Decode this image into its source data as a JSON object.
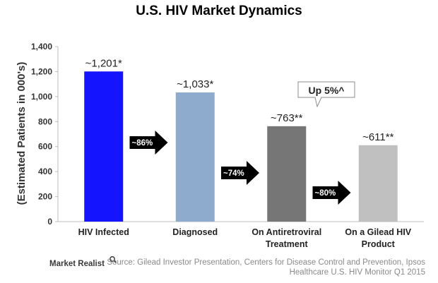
{
  "chart_data": {
    "type": "bar",
    "title": "U.S. HIV Market Dynamics",
    "ylabel": "(Estimated Patients in 000's)",
    "ylim": [
      0,
      1400
    ],
    "yticks": [
      "0",
      "200",
      "400",
      "600",
      "800",
      "1,000",
      "1,200",
      "1,400"
    ],
    "grid": false,
    "categories": [
      [
        "HIV Infected"
      ],
      [
        "Diagnosed"
      ],
      [
        "On Antiretroviral",
        "Treatment"
      ],
      [
        "On a Gilead HIV",
        "Product"
      ]
    ],
    "values": [
      1201,
      1033,
      763,
      611
    ],
    "data_labels": [
      "~1,201*",
      "~1,033*",
      "~763**",
      "~611**"
    ],
    "bar_colors": [
      "#1414ff",
      "#8eaacc",
      "#767676",
      "#c0c0c0"
    ],
    "transitions": [
      "~86%",
      "~74%",
      "~80%"
    ],
    "callout": "Up 5%^"
  },
  "source_lines": [
    "Source: Gilead Investor Presentation, Centers  for Disease Control and Prevention, Ipsos",
    "Healthcare U.S. HIV Monitor Q1 2015"
  ],
  "logo": {
    "text": "Market Realist",
    "icon": "magnifier-icon"
  }
}
